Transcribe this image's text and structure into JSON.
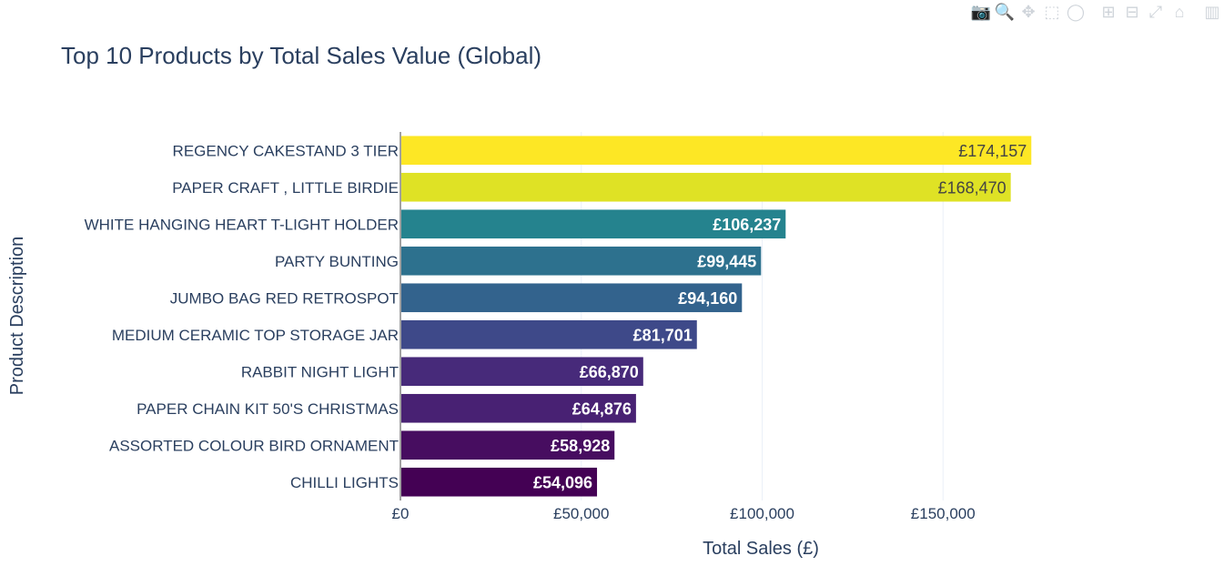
{
  "modebar": {
    "icons": [
      {
        "name": "camera-icon",
        "glyph": "📷"
      },
      {
        "name": "zoom-icon",
        "glyph": "🔍"
      },
      {
        "name": "pan-icon",
        "glyph": "✥"
      },
      {
        "name": "box-select-icon",
        "glyph": "⬚"
      },
      {
        "name": "lasso-select-icon",
        "glyph": "◯"
      },
      {
        "name": "zoom-in-icon",
        "glyph": "⊞"
      },
      {
        "name": "zoom-out-icon",
        "glyph": "⊟"
      },
      {
        "name": "autoscale-icon",
        "glyph": "⤢"
      },
      {
        "name": "reset-axes-icon",
        "glyph": "⌂"
      },
      {
        "name": "plotly-logo-icon",
        "glyph": "▥"
      }
    ]
  },
  "chart_data": {
    "type": "bar",
    "orientation": "horizontal",
    "title": "Top 10 Products by Total Sales Value (Global)",
    "xlabel": "Total Sales (£)",
    "ylabel": "Product Description",
    "xlim": [
      0,
      200000
    ],
    "xticks": [
      0,
      50000,
      100000,
      150000
    ],
    "xtick_labels": [
      "£0",
      "£50,000",
      "£100,000",
      "£150,000"
    ],
    "grid": true,
    "categories": [
      "REGENCY CAKESTAND 3 TIER",
      "PAPER CRAFT , LITTLE BIRDIE",
      "WHITE HANGING HEART T-LIGHT HOLDER",
      "PARTY BUNTING",
      "JUMBO BAG RED RETROSPOT",
      "MEDIUM CERAMIC TOP STORAGE JAR",
      "RABBIT NIGHT LIGHT",
      "PAPER CHAIN KIT 50'S CHRISTMAS",
      "ASSORTED COLOUR BIRD ORNAMENT",
      "CHILLI LIGHTS"
    ],
    "values": [
      174157,
      168470,
      106237,
      99445,
      94160,
      81701,
      66870,
      64876,
      58928,
      54096
    ],
    "value_labels": [
      "£174,157",
      "£168,470",
      "£106,237",
      "£99,445",
      "£94,160",
      "£81,701",
      "£66,870",
      "£64,876",
      "£58,928",
      "£54,096"
    ],
    "colors": [
      "#fde725",
      "#dfe225",
      "#25838e",
      "#2d718e",
      "#33638d",
      "#3e4989",
      "#472a7a",
      "#482173",
      "#470d60",
      "#440154"
    ],
    "label_colors": [
      "#444444",
      "#444444",
      "#ffffff",
      "#ffffff",
      "#ffffff",
      "#ffffff",
      "#ffffff",
      "#ffffff",
      "#ffffff",
      "#ffffff"
    ],
    "text_color": "#2a3f5f",
    "grid_color": "#ebf0f8"
  }
}
